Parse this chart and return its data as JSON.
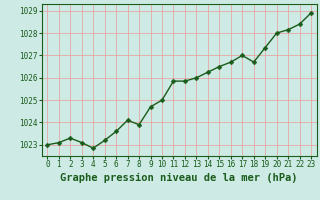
{
  "x": [
    0,
    1,
    2,
    3,
    4,
    5,
    6,
    7,
    8,
    9,
    10,
    11,
    12,
    13,
    14,
    15,
    16,
    17,
    18,
    19,
    20,
    21,
    22,
    23
  ],
  "y": [
    1023.0,
    1023.1,
    1023.3,
    1023.1,
    1022.85,
    1023.2,
    1023.6,
    1024.1,
    1023.9,
    1024.7,
    1025.0,
    1025.85,
    1025.85,
    1026.0,
    1026.25,
    1026.5,
    1026.7,
    1027.0,
    1026.7,
    1027.35,
    1028.0,
    1028.15,
    1028.4,
    1028.9
  ],
  "line_color": "#1a5c1a",
  "marker": "D",
  "marker_size": 2.5,
  "line_width": 1.0,
  "bg_color": "#cdeae5",
  "grid_color": "#ee9999",
  "xlabel": "Graphe pression niveau de la mer (hPa)",
  "xlabel_fontsize": 7.5,
  "xlabel_color": "#1a5c1a",
  "ylim": [
    1022.5,
    1029.3
  ],
  "yticks": [
    1023,
    1024,
    1025,
    1026,
    1027,
    1028,
    1029
  ],
  "xlim": [
    -0.5,
    23.5
  ],
  "xticks": [
    0,
    1,
    2,
    3,
    4,
    5,
    6,
    7,
    8,
    9,
    10,
    11,
    12,
    13,
    14,
    15,
    16,
    17,
    18,
    19,
    20,
    21,
    22,
    23
  ],
  "tick_fontsize": 5.5,
  "tick_color": "#1a5c1a",
  "spine_color": "#1a5c1a"
}
